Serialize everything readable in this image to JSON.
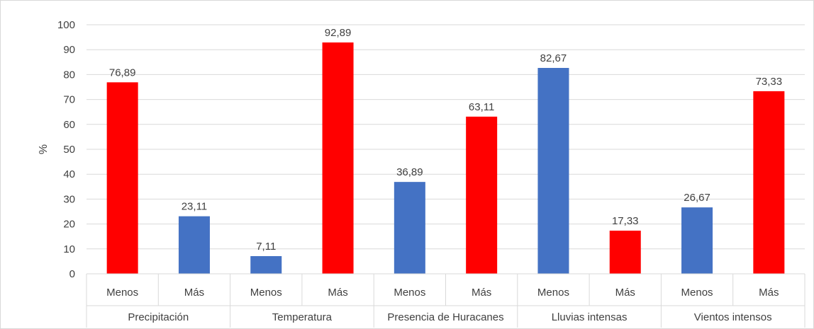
{
  "chart_data": {
    "type": "bar",
    "ylabel": "%",
    "ylim": [
      0,
      100
    ],
    "yticks": [
      0,
      10,
      20,
      30,
      40,
      50,
      60,
      70,
      80,
      90,
      100
    ],
    "grid": true,
    "legend": "none",
    "groups": [
      {
        "label": "Precipitación",
        "bars": [
          {
            "category": "Menos",
            "value": 76.89,
            "value_label": "76,89",
            "color": "#ff0000"
          },
          {
            "category": "Más",
            "value": 23.11,
            "value_label": "23,11",
            "color": "#4472c4"
          }
        ]
      },
      {
        "label": "Temperatura",
        "bars": [
          {
            "category": "Menos",
            "value": 7.11,
            "value_label": "7,11",
            "color": "#4472c4"
          },
          {
            "category": "Más",
            "value": 92.89,
            "value_label": "92,89",
            "color": "#ff0000"
          }
        ]
      },
      {
        "label": "Presencia de Huracanes",
        "bars": [
          {
            "category": "Menos",
            "value": 36.89,
            "value_label": "36,89",
            "color": "#4472c4"
          },
          {
            "category": "Más",
            "value": 63.11,
            "value_label": "63,11",
            "color": "#ff0000"
          }
        ]
      },
      {
        "label": "Lluvias intensas",
        "bars": [
          {
            "category": "Menos",
            "value": 82.67,
            "value_label": "82,67",
            "color": "#4472c4"
          },
          {
            "category": "Más",
            "value": 17.33,
            "value_label": "17,33",
            "color": "#ff0000"
          }
        ]
      },
      {
        "label": "Vientos intensos",
        "bars": [
          {
            "category": "Menos",
            "value": 26.67,
            "value_label": "26,67",
            "color": "#4472c4"
          },
          {
            "category": "Más",
            "value": 73.33,
            "value_label": "73,33",
            "color": "#ff0000"
          }
        ]
      }
    ]
  }
}
